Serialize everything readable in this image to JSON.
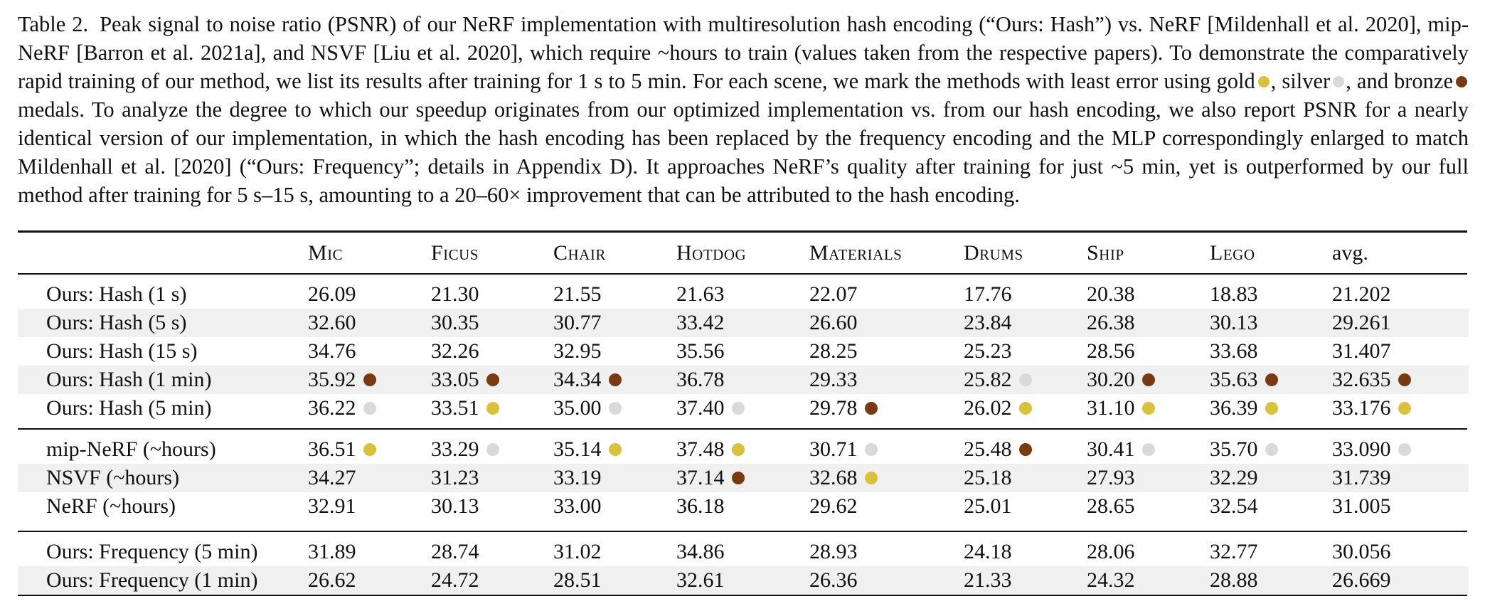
{
  "caption": {
    "label": "Table 2.",
    "text_1": "Peak signal to noise ratio (PSNR) of our NeRF implementation with multiresolution hash encoding (“Ours: Hash”) vs. NeRF [Mildenhall et al. 2020], mip-NeRF [Barron et al. 2021a], and NSVF [Liu et al. 2020], which require ~hours to train (values taken from the respective papers). To demonstrate the comparatively rapid training of our method, we list its results after training for 1 s to 5 min. For each scene, we mark the methods with least error using gold",
    "text_2": ", silver",
    "text_3": ", and bronze",
    "text_4": "medals. To analyze the degree to which our speedup originates from our optimized implementation vs. from our hash encoding, we also report PSNR for a nearly identical version of our implementation, in which the hash encoding has been replaced by the frequency encoding and the MLP correspondingly enlarged to match Mildenhall et al. [2020] (“Ours: Frequency”; details in Appendix D). It approaches NeRF’s quality after training for just ~5 min, yet is outperformed by our full method after training for 5 s–15 s, amounting to a 20–60× improvement that can be attributed to the hash encoding."
  },
  "colors": {
    "gold": "#d9c13a",
    "silver": "#d9d9d9",
    "bronze": "#7a3a10",
    "shade": "#f0f0f0"
  },
  "table": {
    "headers": [
      "Mic",
      "Ficus",
      "Chair",
      "Hotdog",
      "Materials",
      "Drums",
      "Ship",
      "Lego",
      "avg."
    ],
    "rows": [
      {
        "method": "Ours: Hash (1 s)",
        "cells": [
          {
            "v": "26.09"
          },
          {
            "v": "21.30"
          },
          {
            "v": "21.55"
          },
          {
            "v": "21.63"
          },
          {
            "v": "22.07"
          },
          {
            "v": "17.76"
          },
          {
            "v": "20.38"
          },
          {
            "v": "18.83"
          },
          {
            "v": "21.202"
          }
        ]
      },
      {
        "method": "Ours: Hash (5 s)",
        "cells": [
          {
            "v": "32.60"
          },
          {
            "v": "30.35"
          },
          {
            "v": "30.77"
          },
          {
            "v": "33.42"
          },
          {
            "v": "26.60"
          },
          {
            "v": "23.84"
          },
          {
            "v": "26.38"
          },
          {
            "v": "30.13"
          },
          {
            "v": "29.261"
          }
        ]
      },
      {
        "method": "Ours: Hash (15 s)",
        "cells": [
          {
            "v": "34.76"
          },
          {
            "v": "32.26"
          },
          {
            "v": "32.95"
          },
          {
            "v": "35.56"
          },
          {
            "v": "28.25"
          },
          {
            "v": "25.23"
          },
          {
            "v": "28.56"
          },
          {
            "v": "33.68"
          },
          {
            "v": "31.407"
          }
        ]
      },
      {
        "method": "Ours: Hash (1 min)",
        "cells": [
          {
            "v": "35.92",
            "m": "bronze"
          },
          {
            "v": "33.05",
            "m": "bronze"
          },
          {
            "v": "34.34",
            "m": "bronze"
          },
          {
            "v": "36.78"
          },
          {
            "v": "29.33"
          },
          {
            "v": "25.82",
            "m": "silver"
          },
          {
            "v": "30.20",
            "m": "bronze"
          },
          {
            "v": "35.63",
            "m": "bronze"
          },
          {
            "v": "32.635",
            "m": "bronze"
          }
        ]
      },
      {
        "method": "Ours: Hash (5 min)",
        "cells": [
          {
            "v": "36.22",
            "m": "silver"
          },
          {
            "v": "33.51",
            "m": "gold"
          },
          {
            "v": "35.00",
            "m": "silver"
          },
          {
            "v": "37.40",
            "m": "silver"
          },
          {
            "v": "29.78",
            "m": "bronze"
          },
          {
            "v": "26.02",
            "m": "gold"
          },
          {
            "v": "31.10",
            "m": "gold"
          },
          {
            "v": "36.39",
            "m": "gold"
          },
          {
            "v": "33.176",
            "m": "gold"
          }
        ]
      },
      {
        "method": "mip-NeRF (~hours)",
        "cells": [
          {
            "v": "36.51",
            "m": "gold"
          },
          {
            "v": "33.29",
            "m": "silver"
          },
          {
            "v": "35.14",
            "m": "gold"
          },
          {
            "v": "37.48",
            "m": "gold"
          },
          {
            "v": "30.71",
            "m": "silver"
          },
          {
            "v": "25.48",
            "m": "bronze"
          },
          {
            "v": "30.41",
            "m": "silver"
          },
          {
            "v": "35.70",
            "m": "silver"
          },
          {
            "v": "33.090",
            "m": "silver"
          }
        ]
      },
      {
        "method": "NSVF (~hours)",
        "cells": [
          {
            "v": "34.27"
          },
          {
            "v": "31.23"
          },
          {
            "v": "33.19"
          },
          {
            "v": "37.14",
            "m": "bronze"
          },
          {
            "v": "32.68",
            "m": "gold"
          },
          {
            "v": "25.18"
          },
          {
            "v": "27.93"
          },
          {
            "v": "32.29"
          },
          {
            "v": "31.739"
          }
        ]
      },
      {
        "method": "NeRF (~hours)",
        "cells": [
          {
            "v": "32.91"
          },
          {
            "v": "30.13"
          },
          {
            "v": "33.00"
          },
          {
            "v": "36.18"
          },
          {
            "v": "29.62"
          },
          {
            "v": "25.01"
          },
          {
            "v": "28.65"
          },
          {
            "v": "32.54"
          },
          {
            "v": "31.005"
          }
        ]
      },
      {
        "method": "Ours: Frequency (5 min)",
        "cells": [
          {
            "v": "31.89"
          },
          {
            "v": "28.74"
          },
          {
            "v": "31.02"
          },
          {
            "v": "34.86"
          },
          {
            "v": "28.93"
          },
          {
            "v": "24.18"
          },
          {
            "v": "28.06"
          },
          {
            "v": "32.77"
          },
          {
            "v": "30.056"
          }
        ]
      },
      {
        "method": "Ours: Frequency (1 min)",
        "cells": [
          {
            "v": "26.62"
          },
          {
            "v": "24.72"
          },
          {
            "v": "28.51"
          },
          {
            "v": "32.61"
          },
          {
            "v": "26.36"
          },
          {
            "v": "21.33"
          },
          {
            "v": "24.32"
          },
          {
            "v": "28.88"
          },
          {
            "v": "26.669"
          }
        ]
      }
    ]
  }
}
